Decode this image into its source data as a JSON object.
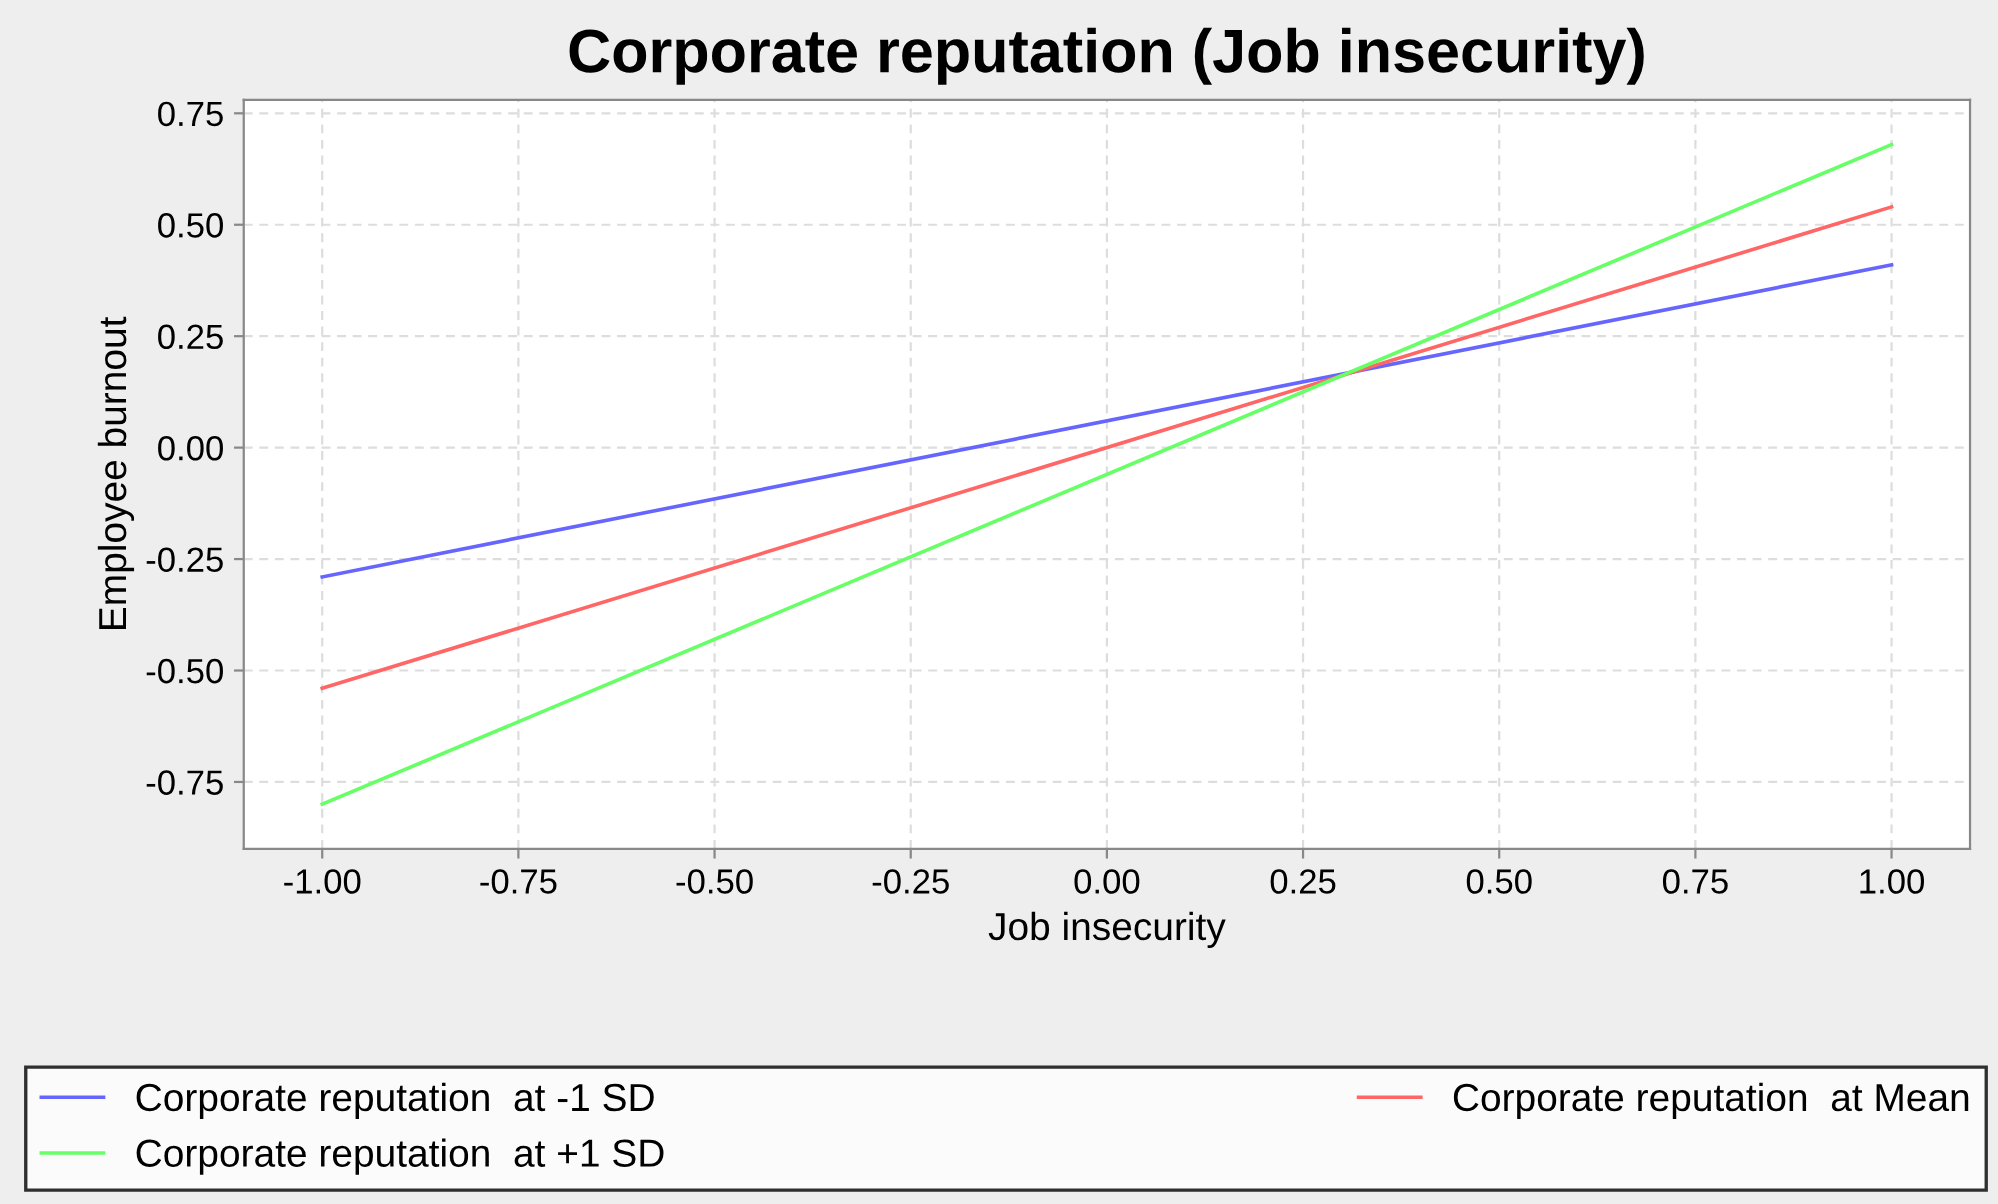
{
  "chart_data": {
    "type": "line",
    "title": "Corporate reputation (Job insecurity)",
    "xlabel": "Job insecurity",
    "ylabel": "Employee burnout",
    "x": [
      -1.0,
      1.0
    ],
    "series": [
      {
        "name": "Corporate reputation  at -1 SD",
        "color": "#6666ff",
        "values": [
          -0.29,
          0.41
        ]
      },
      {
        "name": "Corporate reputation  at Mean",
        "color": "#ff6666",
        "values": [
          -0.54,
          0.54
        ]
      },
      {
        "name": "Corporate reputation  at +1 SD",
        "color": "#66ff66",
        "values": [
          -0.8,
          0.68
        ]
      }
    ],
    "xlim": [
      -1.1,
      1.1
    ],
    "ylim": [
      -0.9,
      0.78
    ],
    "xticks": [
      {
        "value": -1,
        "label": "-1.00"
      },
      {
        "value": -0.75,
        "label": "-0.75"
      },
      {
        "value": -0.5,
        "label": "-0.50"
      },
      {
        "value": -0.25,
        "label": "-0.25"
      },
      {
        "value": 0,
        "label": "0.00"
      },
      {
        "value": 0.25,
        "label": "0.25"
      },
      {
        "value": 0.5,
        "label": "0.50"
      },
      {
        "value": 0.75,
        "label": "0.75"
      },
      {
        "value": 1,
        "label": "1.00"
      }
    ],
    "yticks": [
      {
        "value": -0.75,
        "label": "-0.75"
      },
      {
        "value": -0.5,
        "label": "-0.50"
      },
      {
        "value": -0.25,
        "label": "-0.25"
      },
      {
        "value": 0,
        "label": "0.00"
      },
      {
        "value": 0.25,
        "label": "0.25"
      },
      {
        "value": 0.5,
        "label": "0.50"
      },
      {
        "value": 0.75,
        "label": "0.75"
      }
    ],
    "grid": true,
    "legend": "bottom",
    "line_style": "solid",
    "marker": "none"
  }
}
